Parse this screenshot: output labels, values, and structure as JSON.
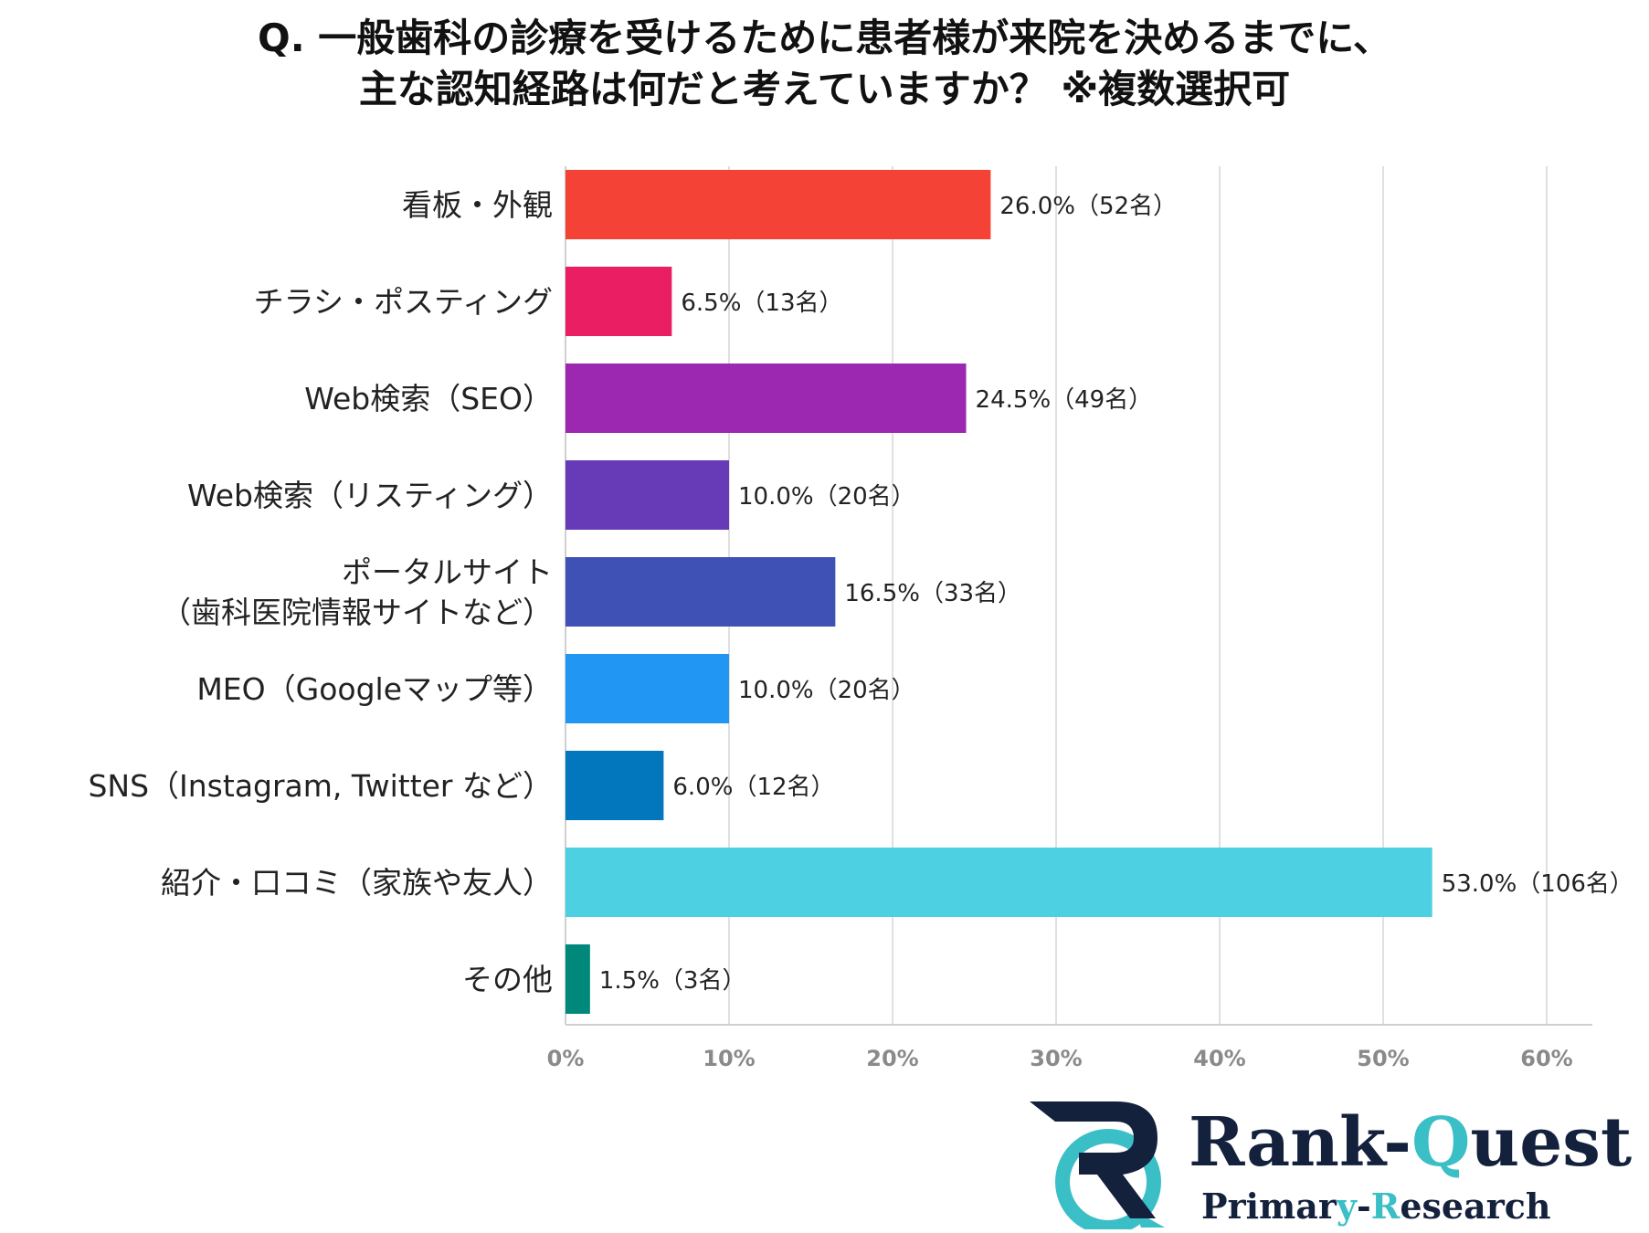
{
  "title": {
    "line1": "Q. 一般歯科の診療を受けるために患者様が来院を決めるまでに、",
    "line2": "主な認知経路は何だと考えていますか？ ※複数選択可"
  },
  "chart_data": {
    "type": "bar",
    "orientation": "horizontal",
    "title": "Q. 一般歯科の診療を受けるために患者様が来院を決めるまでに、主な認知経路は何だと考えていますか？ ※複数選択可",
    "xlabel": "",
    "ylabel": "",
    "xlim": [
      0,
      60
    ],
    "ticks": [
      0,
      10,
      20,
      30,
      40,
      50,
      60
    ],
    "tick_labels": [
      "0%",
      "10%",
      "20%",
      "30%",
      "40%",
      "50%",
      "60%"
    ],
    "grid": true,
    "categories": [
      [
        "看板・外観"
      ],
      [
        "チラシ・ポスティング"
      ],
      [
        "Web検索（SEO）"
      ],
      [
        "Web検索（リスティング）"
      ],
      [
        "ポータルサイト",
        "（歯科医院情報サイトなど）"
      ],
      [
        "MEO（Googleマップ等）"
      ],
      [
        "SNS（Instagram, Twitter など）"
      ],
      [
        "紹介・口コミ（家族や友人）"
      ],
      [
        "その他"
      ]
    ],
    "values": [
      26.0,
      6.5,
      24.5,
      10.0,
      16.5,
      10.0,
      6.0,
      53.0,
      1.5
    ],
    "data_labels": [
      "26.0%（52名）",
      "6.5%（13名）",
      "24.5%（49名）",
      "10.0%（20名）",
      "16.5%（33名）",
      "10.0%（20名）",
      "6.0%（12名）",
      "53.0%（106名）",
      "1.5%（3名）"
    ],
    "colors": [
      "#f44336",
      "#e91e63",
      "#9c27b0",
      "#673ab7",
      "#3f51b5",
      "#2196f3",
      "#0277bd",
      "#4dd0e1",
      "#00897b"
    ]
  },
  "logo": {
    "name_part1": "Rank-",
    "name_part2": "Q",
    "name_part3": "uest",
    "sub_part1": "Primar",
    "sub_part2": "y",
    "sub_part3": "-",
    "sub_part4": "R",
    "sub_part5": "esearch",
    "navy": "#14213d",
    "teal": "#3bbfc6"
  }
}
